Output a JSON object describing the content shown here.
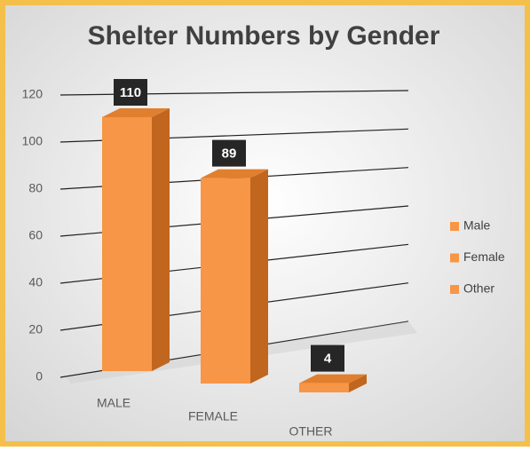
{
  "chart_data": {
    "type": "bar3d",
    "title": "Shelter Numbers by Gender",
    "categories": [
      "MALE",
      "FEMALE",
      "OTHER"
    ],
    "values": [
      110,
      89,
      4
    ],
    "legend": [
      "Male",
      "Female",
      "Other"
    ],
    "color": "#f79646",
    "ylim": [
      0,
      120
    ],
    "yticks": [
      0,
      20,
      40,
      60,
      80,
      100,
      120
    ],
    "grid": true,
    "legend_position": "right"
  }
}
